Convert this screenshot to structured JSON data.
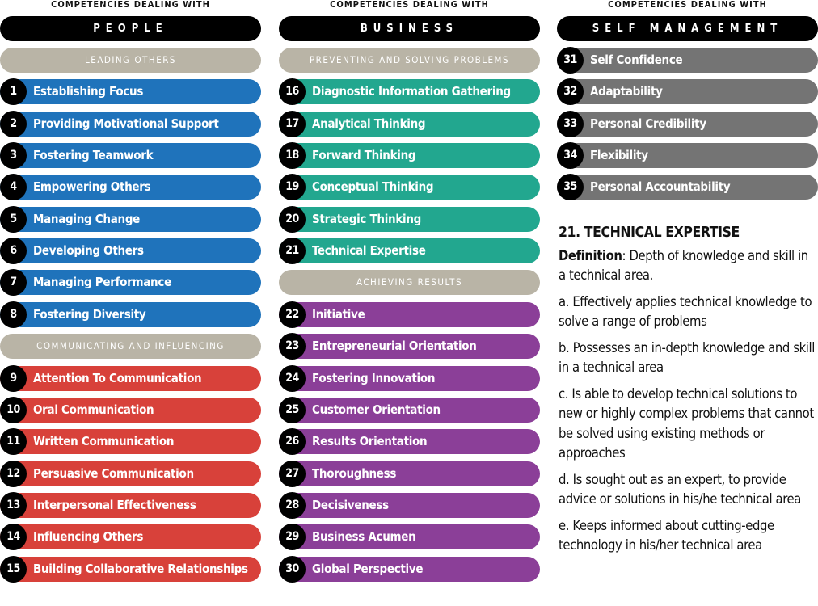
{
  "columns": [
    {
      "caption": "COMPETENCIES DEALING WITH",
      "heading": "PEOPLE",
      "groups": [
        {
          "label": "LEADING OTHERS",
          "color": "#1f73bb",
          "items": [
            {
              "number": 1,
              "name": "Establishing Focus"
            },
            {
              "number": 2,
              "name": "Providing Motivational Support"
            },
            {
              "number": 3,
              "name": "Fostering Teamwork"
            },
            {
              "number": 4,
              "name": "Empowering Others"
            },
            {
              "number": 5,
              "name": "Managing Change"
            },
            {
              "number": 6,
              "name": "Developing Others"
            },
            {
              "number": 7,
              "name": "Managing Performance"
            },
            {
              "number": 8,
              "name": "Fostering Diversity"
            }
          ]
        },
        {
          "label": "COMMUNICATING AND INFLUENCING",
          "color": "#d8413a",
          "items": [
            {
              "number": 9,
              "name": "Attention To Communication"
            },
            {
              "number": 10,
              "name": "Oral Communication"
            },
            {
              "number": 11,
              "name": "Written Communication"
            },
            {
              "number": 12,
              "name": "Persuasive Communication"
            },
            {
              "number": 13,
              "name": "Interpersonal Effectiveness"
            },
            {
              "number": 14,
              "name": "Influencing Others"
            },
            {
              "number": 15,
              "name": "Building Collaborative Relationships"
            }
          ]
        }
      ]
    },
    {
      "caption": "COMPETENCIES DEALING WITH",
      "heading": "BUSINESS",
      "groups": [
        {
          "label": "PREVENTING AND SOLVING PROBLEMS",
          "color": "#22a78f",
          "items": [
            {
              "number": 16,
              "name": "Diagnostic Information Gathering"
            },
            {
              "number": 17,
              "name": "Analytical Thinking"
            },
            {
              "number": 18,
              "name": "Forward Thinking"
            },
            {
              "number": 19,
              "name": "Conceptual Thinking"
            },
            {
              "number": 20,
              "name": "Strategic Thinking"
            },
            {
              "number": 21,
              "name": "Technical Expertise"
            }
          ]
        },
        {
          "label": "ACHIEVING RESULTS",
          "color": "#8b3f98",
          "items": [
            {
              "number": 22,
              "name": "Initiative"
            },
            {
              "number": 23,
              "name": "Entrepreneurial Orientation"
            },
            {
              "number": 24,
              "name": "Fostering Innovation"
            },
            {
              "number": 25,
              "name": "Customer Orientation"
            },
            {
              "number": 26,
              "name": "Results Orientation"
            },
            {
              "number": 27,
              "name": "Thoroughness"
            },
            {
              "number": 28,
              "name": "Decisiveness"
            },
            {
              "number": 29,
              "name": "Business Acumen"
            },
            {
              "number": 30,
              "name": "Global Perspective"
            }
          ]
        }
      ]
    },
    {
      "caption": "COMPETENCIES DEALING WITH",
      "heading": "SELF MANAGEMENT",
      "groups": [
        {
          "color": "#747474",
          "items": [
            {
              "number": 31,
              "name": "Self Confidence"
            },
            {
              "number": 32,
              "name": "Adaptability"
            },
            {
              "number": 33,
              "name": "Personal Credibility"
            },
            {
              "number": 34,
              "name": "Flexibility"
            },
            {
              "number": 35,
              "name": "Personal Accountability"
            }
          ]
        }
      ]
    }
  ],
  "detail": {
    "title": "21. TECHNICAL EXPERTISE",
    "definition_label": "Definition",
    "definition_text": ": Depth of knowledge and skill in a technical area.",
    "points": [
      "a. Effectively applies technical knowledge to solve a range of problems",
      "b. Possesses an in-depth knowledge and skill in a technical area",
      "c. Is able to develop technical solutions to new or highly complex problems that cannot be solved using existing methods or approaches",
      "d. Is sought out as an expert, to provide advice or solutions in his/he technical area",
      "e. Keeps informed about cutting-edge technology in his/her technical area"
    ]
  }
}
